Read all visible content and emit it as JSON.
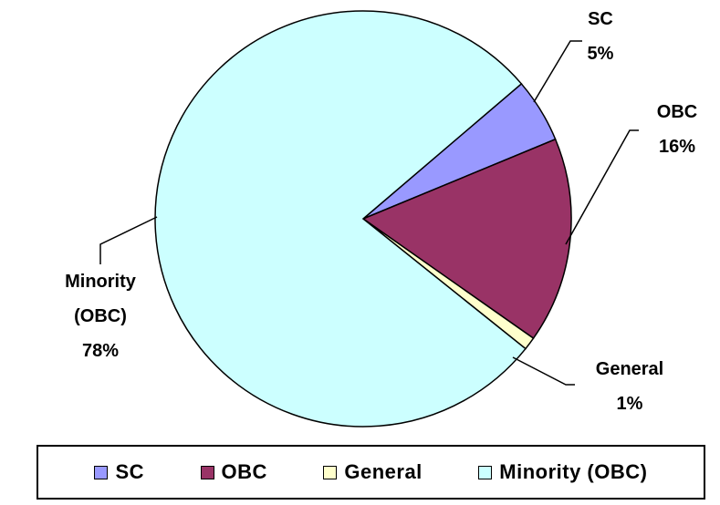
{
  "chart_data": {
    "type": "pie",
    "categories": [
      "SC",
      "OBC",
      "General",
      "Minority (OBC)"
    ],
    "values": [
      5,
      16,
      1,
      78
    ],
    "value_labels": [
      "5%",
      "16%",
      "1%",
      "78%"
    ],
    "colors": [
      "#9999ff",
      "#993366",
      "#ffffcc",
      "#ccffff"
    ],
    "legend": "bottom"
  }
}
